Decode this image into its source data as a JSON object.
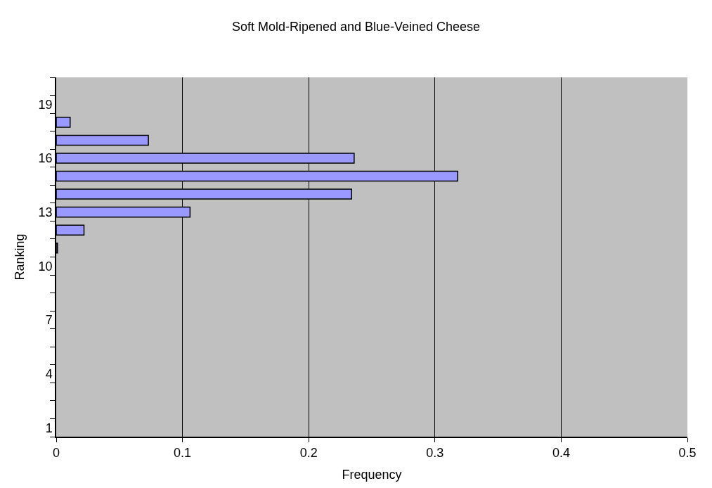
{
  "chart_data": {
    "type": "bar",
    "orientation": "horizontal",
    "title": "Soft Mold-Ripened and Blue-Veined Cheese",
    "xlabel": "Frequency",
    "ylabel": "Ranking",
    "categories": [
      null,
      "19",
      null,
      null,
      "16",
      null,
      null,
      "13",
      null,
      null,
      "10",
      null,
      null,
      "7",
      null,
      null,
      "4",
      null,
      null,
      "1"
    ],
    "values": [
      null,
      null,
      0.011,
      0.073,
      0.236,
      0.318,
      0.234,
      0.106,
      0.022,
      0.001,
      null,
      null,
      null,
      null,
      null,
      null,
      null,
      null,
      null,
      null
    ],
    "color": "#9999ff",
    "xlim": [
      0,
      0.5
    ],
    "xticks": [
      0,
      0.1,
      0.2,
      0.3,
      0.4,
      0.5
    ],
    "grid": "x",
    "legend": false
  }
}
